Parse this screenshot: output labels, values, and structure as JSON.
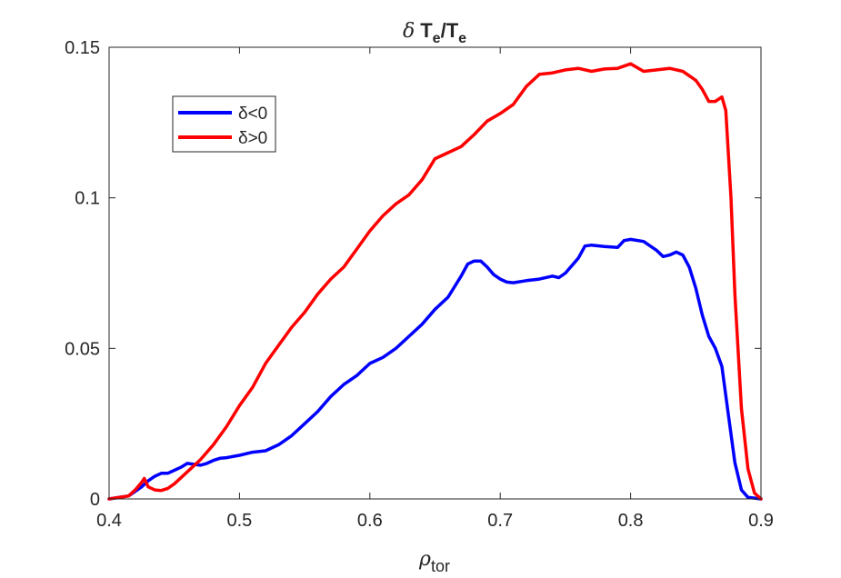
{
  "chart_data": {
    "type": "line",
    "title_parts": {
      "delta": "δ",
      "t1": "T",
      "s1": "e",
      "slash": "/",
      "t2": "T",
      "s2": "e"
    },
    "xlabel_parts": {
      "main": "ρ",
      "sub": "tor"
    },
    "ylabel": "",
    "xlim": [
      0.4,
      0.9
    ],
    "ylim": [
      0,
      0.15
    ],
    "xticks": [
      0.4,
      0.5,
      0.6,
      0.7,
      0.8,
      0.9
    ],
    "xtick_labels": [
      "0.4",
      "0.5",
      "0.6",
      "0.7",
      "0.8",
      "0.9"
    ],
    "yticks": [
      0,
      0.05,
      0.1,
      0.15
    ],
    "ytick_labels": [
      "0",
      "0.05",
      "0.1",
      "0.15"
    ],
    "grid": false,
    "legend_position": "top-left",
    "series": [
      {
        "name": "δ<0",
        "color": "#0000ff",
        "points": [
          [
            0.4,
            0.0
          ],
          [
            0.415,
            0.001
          ],
          [
            0.425,
            0.004
          ],
          [
            0.43,
            0.006
          ],
          [
            0.435,
            0.0075
          ],
          [
            0.44,
            0.0085
          ],
          [
            0.445,
            0.0085
          ],
          [
            0.45,
            0.0095
          ],
          [
            0.455,
            0.0105
          ],
          [
            0.46,
            0.0118
          ],
          [
            0.465,
            0.0115
          ],
          [
            0.47,
            0.0112
          ],
          [
            0.475,
            0.0118
          ],
          [
            0.48,
            0.0128
          ],
          [
            0.485,
            0.0135
          ],
          [
            0.49,
            0.0137
          ],
          [
            0.5,
            0.0145
          ],
          [
            0.51,
            0.0155
          ],
          [
            0.52,
            0.016
          ],
          [
            0.53,
            0.018
          ],
          [
            0.54,
            0.021
          ],
          [
            0.55,
            0.025
          ],
          [
            0.56,
            0.029
          ],
          [
            0.57,
            0.034
          ],
          [
            0.58,
            0.038
          ],
          [
            0.59,
            0.041
          ],
          [
            0.6,
            0.045
          ],
          [
            0.61,
            0.047
          ],
          [
            0.62,
            0.05
          ],
          [
            0.63,
            0.054
          ],
          [
            0.64,
            0.058
          ],
          [
            0.65,
            0.063
          ],
          [
            0.66,
            0.067
          ],
          [
            0.67,
            0.074
          ],
          [
            0.675,
            0.078
          ],
          [
            0.68,
            0.079
          ],
          [
            0.685,
            0.079
          ],
          [
            0.69,
            0.077
          ],
          [
            0.695,
            0.0745
          ],
          [
            0.7,
            0.073
          ],
          [
            0.705,
            0.072
          ],
          [
            0.71,
            0.0718
          ],
          [
            0.72,
            0.0725
          ],
          [
            0.73,
            0.073
          ],
          [
            0.74,
            0.074
          ],
          [
            0.745,
            0.0735
          ],
          [
            0.75,
            0.075
          ],
          [
            0.76,
            0.08
          ],
          [
            0.765,
            0.084
          ],
          [
            0.77,
            0.0843
          ],
          [
            0.78,
            0.0838
          ],
          [
            0.79,
            0.0835
          ],
          [
            0.795,
            0.0858
          ],
          [
            0.8,
            0.0862
          ],
          [
            0.81,
            0.0855
          ],
          [
            0.82,
            0.0825
          ],
          [
            0.825,
            0.0805
          ],
          [
            0.83,
            0.081
          ],
          [
            0.835,
            0.082
          ],
          [
            0.84,
            0.081
          ],
          [
            0.845,
            0.077
          ],
          [
            0.85,
            0.07
          ],
          [
            0.855,
            0.061
          ],
          [
            0.86,
            0.054
          ],
          [
            0.865,
            0.05
          ],
          [
            0.87,
            0.044
          ],
          [
            0.875,
            0.028
          ],
          [
            0.88,
            0.012
          ],
          [
            0.885,
            0.003
          ],
          [
            0.89,
            0.0005
          ],
          [
            0.9,
            0.0
          ]
        ]
      },
      {
        "name": "δ>0",
        "color": "#ff0000",
        "points": [
          [
            0.4,
            0.0
          ],
          [
            0.415,
            0.001
          ],
          [
            0.42,
            0.003
          ],
          [
            0.425,
            0.0055
          ],
          [
            0.427,
            0.0068
          ],
          [
            0.43,
            0.004
          ],
          [
            0.435,
            0.003
          ],
          [
            0.44,
            0.0028
          ],
          [
            0.445,
            0.0035
          ],
          [
            0.45,
            0.005
          ],
          [
            0.455,
            0.007
          ],
          [
            0.46,
            0.009
          ],
          [
            0.47,
            0.013
          ],
          [
            0.48,
            0.018
          ],
          [
            0.49,
            0.024
          ],
          [
            0.5,
            0.031
          ],
          [
            0.51,
            0.037
          ],
          [
            0.52,
            0.045
          ],
          [
            0.53,
            0.051
          ],
          [
            0.54,
            0.057
          ],
          [
            0.55,
            0.062
          ],
          [
            0.56,
            0.068
          ],
          [
            0.57,
            0.073
          ],
          [
            0.58,
            0.077
          ],
          [
            0.59,
            0.083
          ],
          [
            0.6,
            0.089
          ],
          [
            0.61,
            0.094
          ],
          [
            0.62,
            0.098
          ],
          [
            0.63,
            0.101
          ],
          [
            0.64,
            0.106
          ],
          [
            0.65,
            0.113
          ],
          [
            0.66,
            0.115
          ],
          [
            0.67,
            0.117
          ],
          [
            0.68,
            0.121
          ],
          [
            0.69,
            0.1255
          ],
          [
            0.7,
            0.128
          ],
          [
            0.71,
            0.131
          ],
          [
            0.72,
            0.137
          ],
          [
            0.73,
            0.141
          ],
          [
            0.74,
            0.1415
          ],
          [
            0.75,
            0.1425
          ],
          [
            0.76,
            0.143
          ],
          [
            0.77,
            0.142
          ],
          [
            0.78,
            0.1428
          ],
          [
            0.79,
            0.143
          ],
          [
            0.8,
            0.1445
          ],
          [
            0.81,
            0.142
          ],
          [
            0.82,
            0.1425
          ],
          [
            0.83,
            0.143
          ],
          [
            0.84,
            0.142
          ],
          [
            0.85,
            0.139
          ],
          [
            0.855,
            0.136
          ],
          [
            0.86,
            0.132
          ],
          [
            0.865,
            0.132
          ],
          [
            0.87,
            0.1335
          ],
          [
            0.873,
            0.129
          ],
          [
            0.877,
            0.1
          ],
          [
            0.88,
            0.068
          ],
          [
            0.885,
            0.03
          ],
          [
            0.89,
            0.01
          ],
          [
            0.895,
            0.002
          ],
          [
            0.9,
            0.0
          ]
        ]
      }
    ]
  }
}
